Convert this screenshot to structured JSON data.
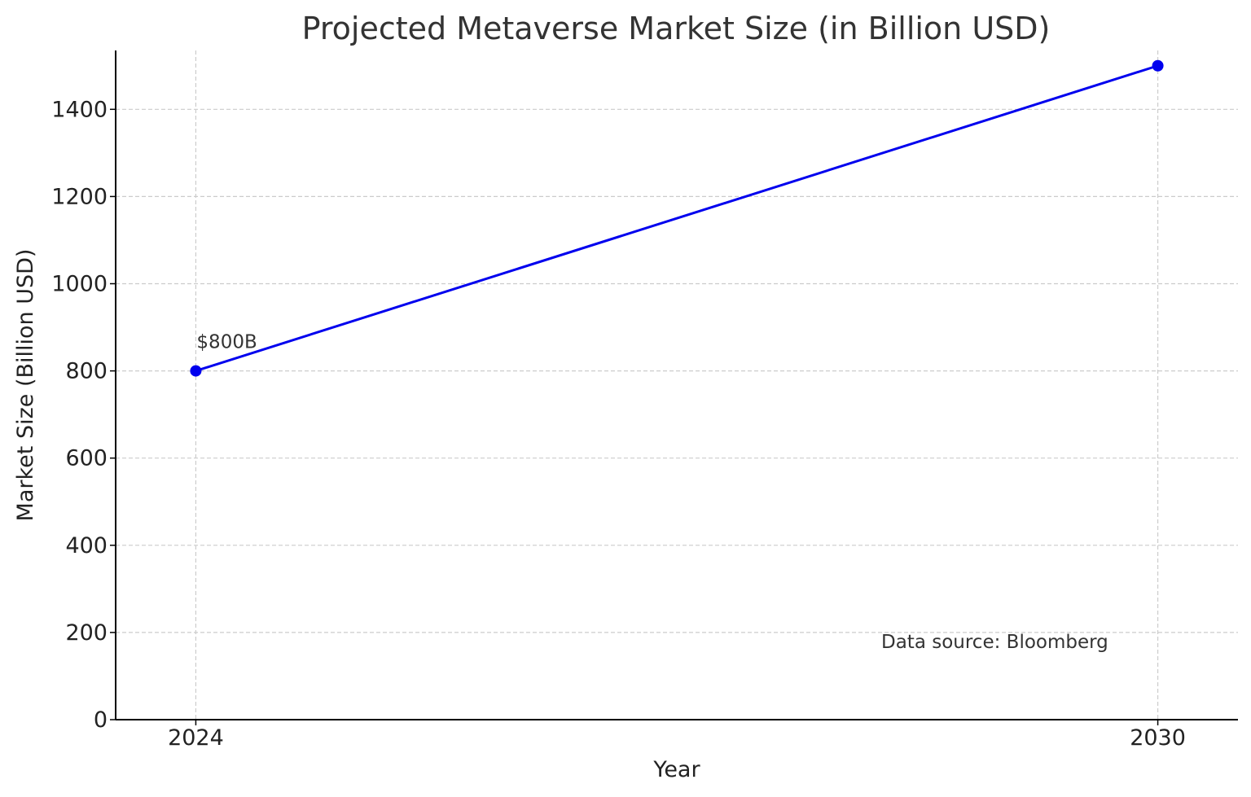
{
  "chart_data": {
    "type": "line",
    "title": "Projected Metaverse Market Size (in Billion USD)",
    "xlabel": "Year",
    "ylabel": "Market Size (Billion USD)",
    "x": [
      2024,
      2030
    ],
    "x_ticks": [
      "2024",
      "2030"
    ],
    "y_ticks": [
      0,
      200,
      400,
      600,
      800,
      1000,
      1200,
      1400
    ],
    "ylim": [
      0,
      1535
    ],
    "xlim": [
      2023.5,
      2030.5
    ],
    "series": [
      {
        "values": [
          800,
          1500
        ],
        "color": "#0000ee"
      }
    ],
    "grid": true,
    "annotations": [
      {
        "text": "$800B",
        "x": 2024,
        "y": 800
      },
      {
        "text": "Data source: Bloomberg"
      }
    ]
  }
}
